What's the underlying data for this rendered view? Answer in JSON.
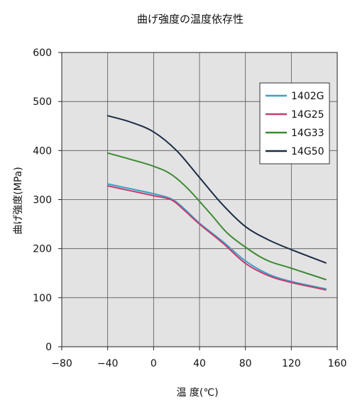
{
  "chart_data": {
    "type": "line",
    "title": "曲げ強度の温度依存性",
    "xlabel": "温 度(℃)",
    "ylabel": "曲げ強度(MPa)",
    "xlim": [
      -80,
      160
    ],
    "ylim": [
      0,
      600
    ],
    "x_ticks": [
      -80,
      -40,
      0,
      40,
      80,
      120,
      160
    ],
    "y_ticks": [
      0,
      100,
      200,
      300,
      400,
      500,
      600
    ],
    "x_tick_labels": [
      "−80",
      "−40",
      "0",
      "40",
      "80",
      "120",
      "160"
    ],
    "y_tick_labels": [
      "0",
      "100",
      "200",
      "300",
      "400",
      "500",
      "600"
    ],
    "grid": true,
    "plot_background": "#e3e3e3",
    "legend_position": "top-right",
    "series": [
      {
        "name": "1402G",
        "color": "#3aa0c8",
        "points": [
          [
            -40,
            332
          ],
          [
            -20,
            322
          ],
          [
            0,
            312
          ],
          [
            15,
            302
          ],
          [
            25,
            285
          ],
          [
            40,
            252
          ],
          [
            60,
            215
          ],
          [
            80,
            175
          ],
          [
            100,
            148
          ],
          [
            120,
            133
          ],
          [
            150,
            118
          ]
        ]
      },
      {
        "name": "14G25",
        "color": "#c43c6e",
        "points": [
          [
            -40,
            328
          ],
          [
            -20,
            318
          ],
          [
            0,
            308
          ],
          [
            15,
            300
          ],
          [
            25,
            282
          ],
          [
            40,
            250
          ],
          [
            60,
            212
          ],
          [
            80,
            170
          ],
          [
            100,
            145
          ],
          [
            120,
            131
          ],
          [
            150,
            116
          ]
        ]
      },
      {
        "name": "14G33",
        "color": "#3c8a32",
        "points": [
          [
            -40,
            395
          ],
          [
            -20,
            382
          ],
          [
            0,
            368
          ],
          [
            15,
            352
          ],
          [
            30,
            322
          ],
          [
            50,
            270
          ],
          [
            65,
            230
          ],
          [
            85,
            195
          ],
          [
            100,
            175
          ],
          [
            120,
            160
          ],
          [
            150,
            137
          ]
        ]
      },
      {
        "name": "14G50",
        "color": "#1b2b45",
        "points": [
          [
            -40,
            471
          ],
          [
            -20,
            458
          ],
          [
            0,
            438
          ],
          [
            20,
            400
          ],
          [
            40,
            345
          ],
          [
            60,
            290
          ],
          [
            80,
            245
          ],
          [
            100,
            218
          ],
          [
            120,
            198
          ],
          [
            150,
            171
          ]
        ]
      }
    ]
  }
}
